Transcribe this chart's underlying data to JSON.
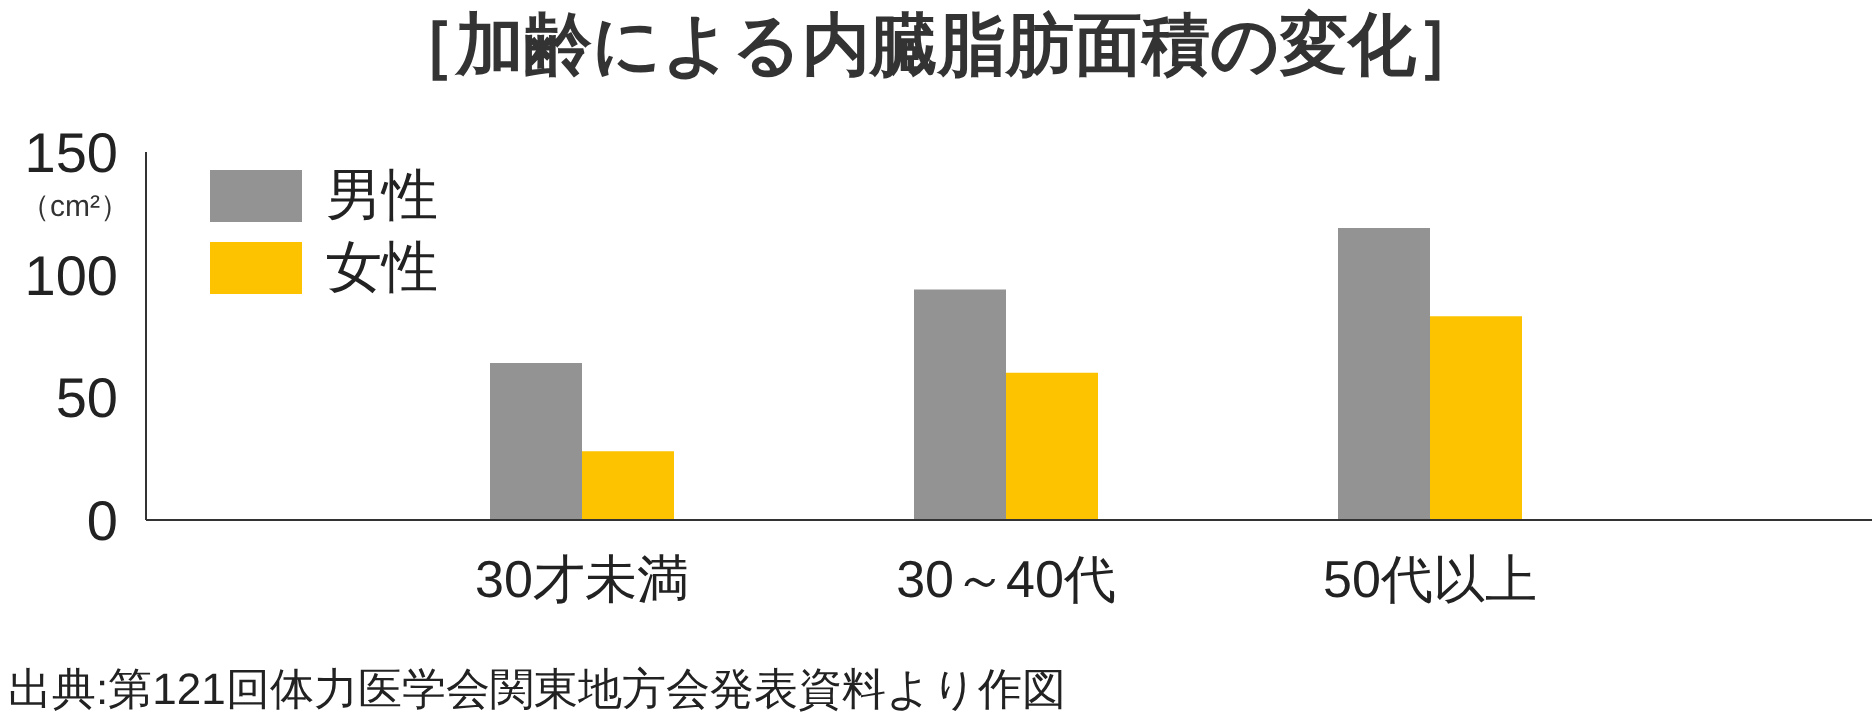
{
  "chart_data": {
    "type": "bar",
    "title": "［加齢による内臓脂肪面積の変化］",
    "ylabel": "（cm²）",
    "categories": [
      "30才未満",
      "30～40代",
      "50代以上"
    ],
    "series": [
      {
        "name": "男性",
        "color": "#939393",
        "values": [
          64,
          94,
          119
        ]
      },
      {
        "name": "女性",
        "color": "#fdc300",
        "values": [
          28,
          60,
          83
        ]
      }
    ],
    "ylim": [
      0,
      150
    ],
    "yticks": [
      0,
      50,
      100,
      150
    ],
    "grid": false,
    "legend": "top left",
    "annotations": [
      "出典:第121回体力医学会関東地方会発表資料より作図"
    ]
  }
}
